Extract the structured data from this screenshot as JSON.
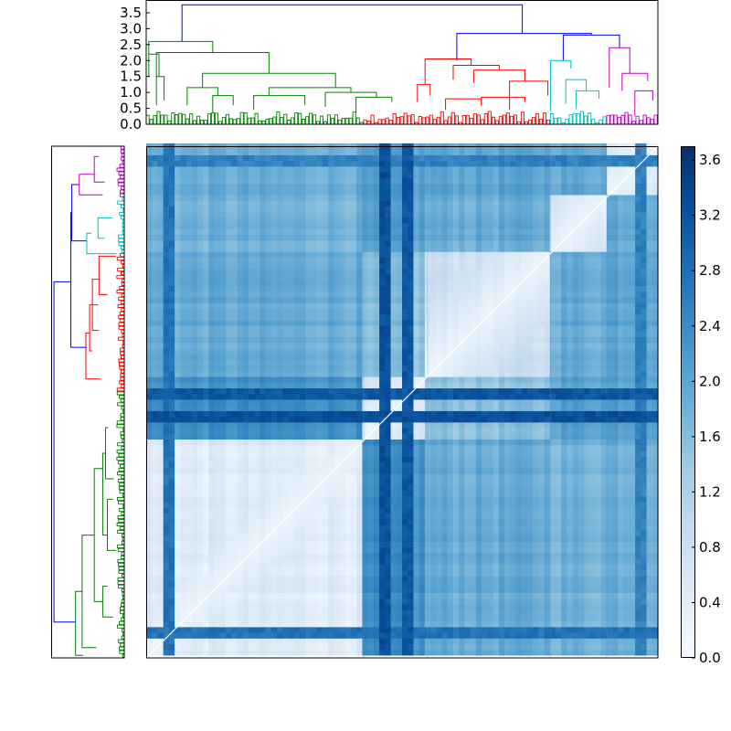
{
  "chart_data": [
    {
      "type": "dendrogram",
      "panel": "top-dendrogram",
      "orientation": "top",
      "title": "",
      "xlabel": "",
      "ylabel": "",
      "ylim": [
        0,
        3.9
      ],
      "y_ticks": [
        "0.0",
        "0.5",
        "1.0",
        "1.5",
        "2.0",
        "2.5",
        "3.0",
        "3.5"
      ],
      "y_tick_values": [
        0.0,
        0.5,
        1.0,
        1.5,
        2.0,
        2.5,
        3.0,
        3.5
      ],
      "leaf_axis_range": [
        0,
        1
      ],
      "clusters": [
        {
          "color": "#008000",
          "start": 0.0,
          "end": 0.425
        },
        {
          "color": "#ff0000",
          "start": 0.425,
          "end": 0.79
        },
        {
          "color": "#00bfbf",
          "start": 0.79,
          "end": 0.9
        },
        {
          "color": "#bf00bf",
          "start": 0.9,
          "end": 1.0
        }
      ],
      "links": [
        {
          "a": 0.07,
          "b": 0.735,
          "h": 3.75,
          "ha": 2.6,
          "hb": 2.85,
          "color": "#0000ff"
        },
        {
          "a": 0.607,
          "b": 0.87,
          "h": 2.85,
          "ha": 2.0,
          "hb": 2.8,
          "color": "#0000ff"
        },
        {
          "a": 0.815,
          "b": 0.925,
          "h": 2.8,
          "ha": 2.0,
          "hb": 2.4,
          "color": "#0000ff"
        },
        {
          "a": 0.005,
          "b": 0.13,
          "h": 2.6,
          "ha": 2.2,
          "hb": 2.25,
          "color": "#008000"
        },
        {
          "a": 0.02,
          "b": 0.24,
          "h": 2.25,
          "ha": 1.5,
          "hb": 1.6,
          "color": "#008000"
        },
        {
          "a": 0.11,
          "b": 0.37,
          "h": 1.6,
          "ha": 1.15,
          "hb": 1.15,
          "color": "#008000"
        },
        {
          "a": 0.08,
          "b": 0.14,
          "h": 1.15,
          "ha": 0.6,
          "hb": 0.9,
          "color": "#008000"
        },
        {
          "a": 0.24,
          "b": 0.4,
          "h": 1.15,
          "ha": 0.9,
          "hb": 1.0,
          "color": "#008000"
        },
        {
          "a": 0.13,
          "b": 0.17,
          "h": 0.9,
          "ha": 0.35,
          "hb": 0.6,
          "color": "#008000"
        },
        {
          "a": 0.21,
          "b": 0.31,
          "h": 0.9,
          "ha": 0.45,
          "hb": 0.6,
          "color": "#008000"
        },
        {
          "a": 0.35,
          "b": 0.45,
          "h": 1.0,
          "ha": 0.55,
          "hb": 0.85,
          "color": "#008000"
        },
        {
          "a": 0.41,
          "b": 0.48,
          "h": 0.85,
          "ha": 0.35,
          "hb": 0.7,
          "color": "#008000"
        },
        {
          "a": 0.02,
          "b": 0.035,
          "h": 1.5,
          "ha": 0.6,
          "hb": 0.75,
          "color": "#008000"
        },
        {
          "a": 0.005,
          "b": 0.025,
          "h": 2.2,
          "ha": 1.5,
          "hb": 1.5,
          "color": "#008000"
        },
        {
          "a": 0.545,
          "b": 0.635,
          "h": 2.05,
          "ha": 1.25,
          "hb": 1.85,
          "color": "#ff0000"
        },
        {
          "a": 0.53,
          "b": 0.555,
          "h": 1.25,
          "ha": 0.7,
          "hb": 0.9,
          "color": "#ff0000"
        },
        {
          "a": 0.6,
          "b": 0.69,
          "h": 1.85,
          "ha": 1.4,
          "hb": 1.7,
          "color": "#ff0000"
        },
        {
          "a": 0.64,
          "b": 0.74,
          "h": 1.7,
          "ha": 1.3,
          "hb": 1.35,
          "color": "#ff0000"
        },
        {
          "a": 0.585,
          "b": 0.655,
          "h": 0.8,
          "ha": 0.45,
          "hb": 0.6,
          "color": "#ff0000"
        },
        {
          "a": 0.655,
          "b": 0.74,
          "h": 0.85,
          "ha": 0.6,
          "hb": 0.7,
          "color": "#ff0000"
        },
        {
          "a": 0.71,
          "b": 0.785,
          "h": 1.35,
          "ha": 0.45,
          "hb": 0.9,
          "color": "#ff0000"
        },
        {
          "a": 0.79,
          "b": 0.83,
          "h": 2.0,
          "ha": 0.4,
          "hb": 1.75,
          "color": "#00bfbf"
        },
        {
          "a": 0.82,
          "b": 0.86,
          "h": 1.4,
          "ha": 0.65,
          "hb": 1.05,
          "color": "#00bfbf"
        },
        {
          "a": 0.84,
          "b": 0.885,
          "h": 1.05,
          "ha": 0.5,
          "hb": 0.8,
          "color": "#00bfbf"
        },
        {
          "a": 0.905,
          "b": 0.945,
          "h": 2.4,
          "ha": 1.15,
          "hb": 1.6,
          "color": "#bf00bf"
        },
        {
          "a": 0.93,
          "b": 0.98,
          "h": 1.6,
          "ha": 1.05,
          "hb": 1.35,
          "color": "#bf00bf"
        },
        {
          "a": 0.955,
          "b": 0.99,
          "h": 1.05,
          "ha": 0.25,
          "hb": 0.75,
          "color": "#bf00bf"
        }
      ]
    },
    {
      "type": "dendrogram",
      "panel": "left-dendrogram",
      "orientation": "left",
      "title": "",
      "xlabel": "",
      "ylabel": "",
      "value_range": [
        0,
        3.9
      ],
      "leaf_axis_range": [
        0,
        1
      ],
      "clusters": [
        {
          "color": "#bf00bf",
          "start": 0.0,
          "end": 0.1
        },
        {
          "color": "#00bfbf",
          "start": 0.1,
          "end": 0.21
        },
        {
          "color": "#ff0000",
          "start": 0.21,
          "end": 0.48
        },
        {
          "color": "#008000",
          "start": 0.48,
          "end": 1.0
        }
      ],
      "links": [
        {
          "a": 0.265,
          "b": 0.93,
          "h": 3.75,
          "ha": 2.85,
          "hb": 2.6,
          "color": "#0000ff"
        },
        {
          "a": 0.13,
          "b": 0.393,
          "h": 2.85,
          "ha": 2.8,
          "hb": 2.0,
          "color": "#0000ff"
        },
        {
          "a": 0.075,
          "b": 0.185,
          "h": 2.8,
          "ha": 2.4,
          "hb": 2.0,
          "color": "#0000ff"
        },
        {
          "a": 0.87,
          "b": 0.995,
          "h": 2.6,
          "ha": 2.25,
          "hb": 2.2,
          "color": "#008000"
        },
        {
          "a": 0.76,
          "b": 0.98,
          "h": 2.25,
          "ha": 1.6,
          "hb": 1.5,
          "color": "#008000"
        },
        {
          "a": 0.63,
          "b": 0.89,
          "h": 1.6,
          "ha": 1.15,
          "hb": 1.15,
          "color": "#008000"
        },
        {
          "a": 0.86,
          "b": 0.92,
          "h": 1.15,
          "ha": 0.9,
          "hb": 0.6,
          "color": "#008000"
        },
        {
          "a": 0.6,
          "b": 0.76,
          "h": 1.15,
          "ha": 1.0,
          "hb": 0.9,
          "color": "#008000"
        },
        {
          "a": 0.55,
          "b": 0.65,
          "h": 1.0,
          "ha": 0.85,
          "hb": 0.55,
          "color": "#008000"
        },
        {
          "a": 0.69,
          "b": 0.79,
          "h": 0.9,
          "ha": 0.6,
          "hb": 0.45,
          "color": "#008000"
        },
        {
          "a": 0.455,
          "b": 0.365,
          "h": 2.05,
          "ha": 1.25,
          "hb": 1.85,
          "color": "#ff0000"
        },
        {
          "a": 0.4,
          "b": 0.31,
          "h": 1.85,
          "ha": 1.7,
          "hb": 1.4,
          "color": "#ff0000"
        },
        {
          "a": 0.36,
          "b": 0.26,
          "h": 1.7,
          "ha": 1.35,
          "hb": 1.3,
          "color": "#ff0000"
        },
        {
          "a": 0.29,
          "b": 0.215,
          "h": 1.35,
          "ha": 0.9,
          "hb": 0.45,
          "color": "#ff0000"
        },
        {
          "a": 0.21,
          "b": 0.17,
          "h": 2.0,
          "ha": 0.4,
          "hb": 1.75,
          "color": "#00bfbf"
        },
        {
          "a": 0.18,
          "b": 0.14,
          "h": 1.4,
          "ha": 1.05,
          "hb": 0.65,
          "color": "#00bfbf"
        },
        {
          "a": 0.095,
          "b": 0.055,
          "h": 2.4,
          "ha": 1.15,
          "hb": 1.6,
          "color": "#bf00bf"
        },
        {
          "a": 0.07,
          "b": 0.02,
          "h": 1.6,
          "ha": 1.05,
          "hb": 1.35,
          "color": "#bf00bf"
        }
      ]
    },
    {
      "type": "heatmap",
      "panel": "distance-matrix",
      "title": "",
      "xlabel": "",
      "ylabel": "",
      "colormap": "Blues",
      "colormap_stops": [
        "#f7fbff",
        "#deebf7",
        "#c6dbef",
        "#9ecae1",
        "#6baed6",
        "#4292c6",
        "#2171b5",
        "#08519c",
        "#08306b"
      ],
      "value_range": [
        0,
        3.7
      ],
      "axis_range": [
        0,
        1
      ],
      "block_boundaries": [
        0,
        0.425,
        0.55,
        0.79,
        0.9,
        1.0
      ],
      "block_means": [
        [
          0.45,
          2.3,
          1.9,
          1.8,
          1.9
        ],
        [
          2.3,
          0.65,
          1.5,
          2.05,
          2.1
        ],
        [
          1.9,
          1.5,
          0.8,
          1.9,
          2.05
        ],
        [
          1.8,
          2.05,
          1.9,
          0.9,
          2.0
        ],
        [
          1.9,
          2.1,
          2.05,
          2.0,
          0.6
        ]
      ],
      "dark_stripes": [
        {
          "pos": 0.515,
          "width": 0.01,
          "value": 3.2
        },
        {
          "pos": 0.467,
          "width": 0.006,
          "value": 3.3
        },
        {
          "pos": 0.045,
          "width": 0.012,
          "value": 2.8
        },
        {
          "pos": 0.965,
          "width": 0.014,
          "value": 2.6
        }
      ]
    },
    {
      "type": "colorbar",
      "panel": "colorbar",
      "ticks": [
        "0.0",
        "0.4",
        "0.8",
        "1.2",
        "1.6",
        "2.0",
        "2.4",
        "2.8",
        "3.2",
        "3.6"
      ],
      "tick_values": [
        0.0,
        0.4,
        0.8,
        1.2,
        1.6,
        2.0,
        2.4,
        2.8,
        3.2,
        3.6
      ],
      "range": [
        0,
        3.7
      ]
    }
  ]
}
